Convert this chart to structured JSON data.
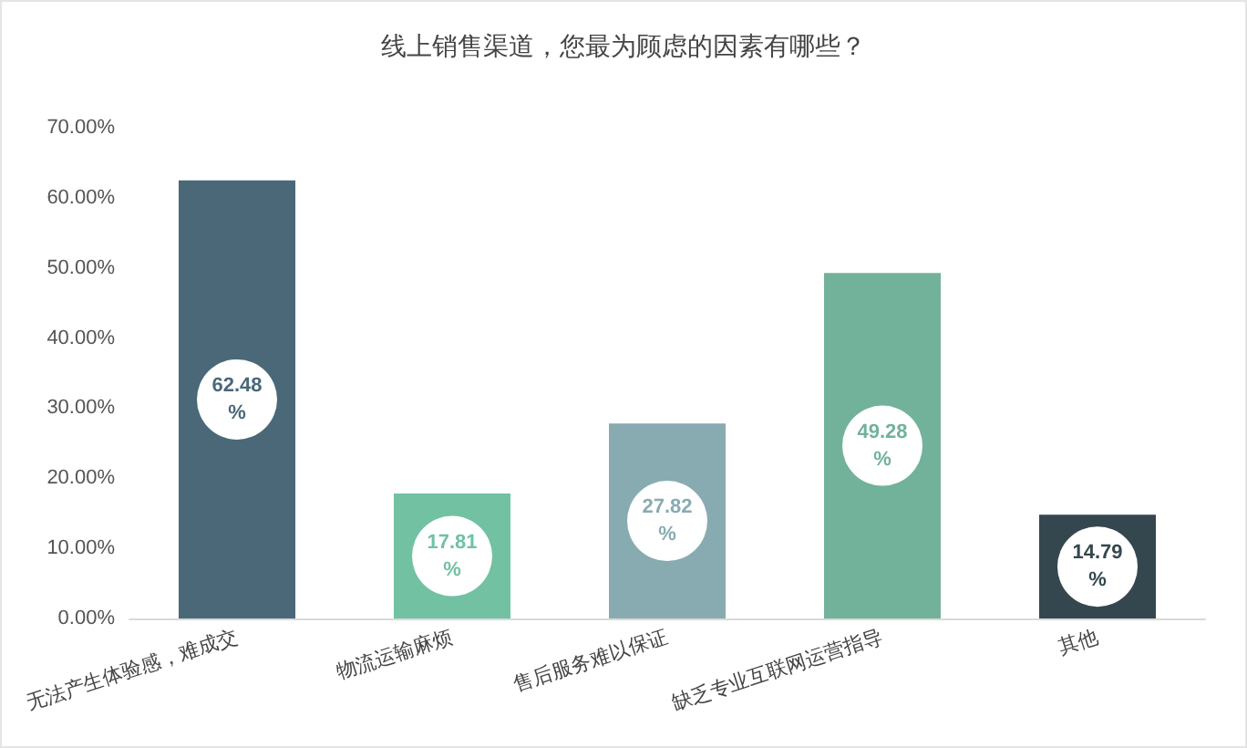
{
  "chart_data": {
    "type": "bar",
    "title": "线上销售渠道，您最为顾虑的因素有哪些？",
    "categories": [
      "无法产生体验感，难成交",
      "物流运输麻烦",
      "售后服务难以保证",
      "缺乏专业互联网运营指导",
      "其他"
    ],
    "values": [
      62.48,
      17.81,
      27.82,
      49.28,
      14.79
    ],
    "colors": [
      "#4a6878",
      "#72c1a3",
      "#88abb1",
      "#72b29a",
      "#34474f"
    ],
    "value_labels": [
      "62.48%",
      "17.81%",
      "27.82%",
      "49.28%",
      "14.79%"
    ],
    "ylim": [
      0,
      70
    ],
    "yticks": [
      {
        "value": 0,
        "label": "0.00%"
      },
      {
        "value": 10,
        "label": "10.00%"
      },
      {
        "value": 20,
        "label": "20.00%"
      },
      {
        "value": 30,
        "label": "30.00%"
      },
      {
        "value": 40,
        "label": "40.00%"
      },
      {
        "value": 50,
        "label": "50.00%"
      },
      {
        "value": 60,
        "label": "60.00%"
      },
      {
        "value": 70,
        "label": "70.00%"
      }
    ],
    "grid": false
  }
}
